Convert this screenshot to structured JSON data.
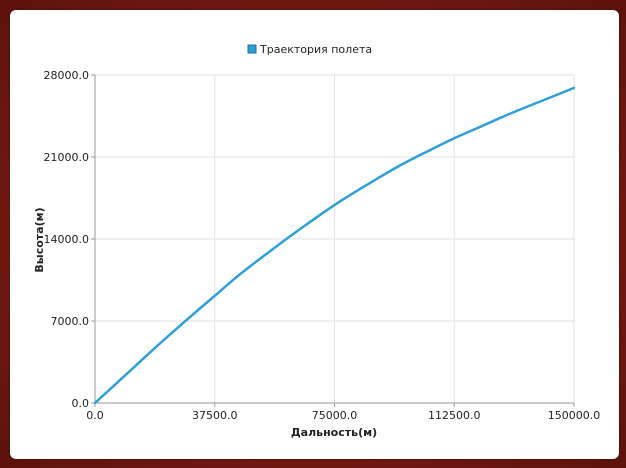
{
  "chart_data": {
    "type": "line",
    "title": "",
    "xlabel": "Дальность(м)",
    "ylabel": "Высота(м)",
    "xlim": [
      0,
      150000
    ],
    "ylim": [
      0,
      28000
    ],
    "x_ticks": [
      "0.0",
      "37500.0",
      "75000.0",
      "112500.0",
      "150000.0"
    ],
    "y_ticks": [
      "0.0",
      "7000.0",
      "14000.0",
      "21000.0",
      "28000.0"
    ],
    "grid": true,
    "legend": "top-center",
    "series": [
      {
        "name": "Траектория полета",
        "color": "#2e9fd8",
        "x": [
          0,
          10000,
          20000,
          30000,
          37500,
          45000,
          55000,
          65000,
          75000,
          85000,
          95000,
          105000,
          112500,
          120000,
          130000,
          140000,
          150000
        ],
        "y": [
          0,
          2500,
          5000,
          7400,
          9150,
          10900,
          13000,
          15000,
          16900,
          18600,
          20200,
          21600,
          22600,
          23500,
          24700,
          25800,
          26900
        ]
      }
    ]
  }
}
